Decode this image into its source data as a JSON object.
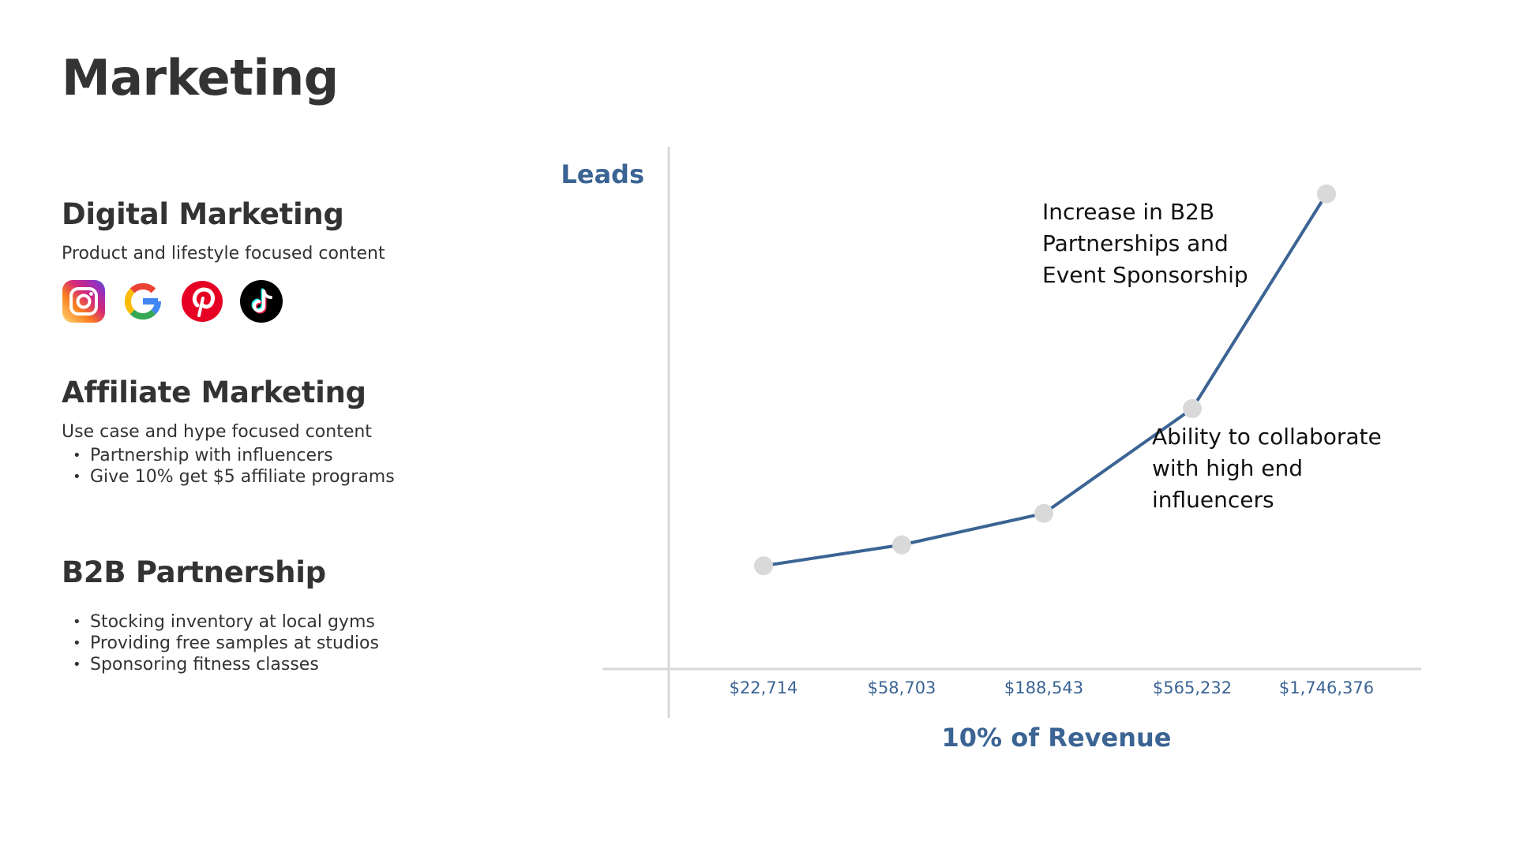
{
  "title": "Marketing",
  "sections": {
    "digital": {
      "heading": "Digital Marketing",
      "description": "Product and lifestyle focused content",
      "icons": [
        "instagram-icon",
        "google-icon",
        "pinterest-icon",
        "tiktok-icon"
      ]
    },
    "affiliate": {
      "heading": "Affiliate Marketing",
      "description": "Use case and hype focused content",
      "bullets": [
        "Partnership with influencers",
        "Give 10% get $5 affiliate programs"
      ]
    },
    "b2b": {
      "heading": "B2B Partnership",
      "bullets": [
        "Stocking inventory at local gyms",
        "Providing free samples at studios",
        "Sponsoring fitness classes"
      ]
    }
  },
  "colors": {
    "accent": "#3b6494",
    "line": "#3b6494",
    "marker": "#d9d9d9",
    "axis": "#d9d9d9",
    "text": "#333333"
  },
  "chart_data": {
    "type": "line",
    "categories": [
      "$22,714",
      "$58,703",
      "$188,543",
      "$565,232",
      "$1,746,376"
    ],
    "values": [
      20,
      24,
      30,
      50,
      91
    ],
    "ylim": [
      0,
      100
    ],
    "xlabel": "10% of Revenue",
    "ylabel": "Leads",
    "grid": false,
    "annotations": [
      {
        "lines": [
          "Increase in B2B",
          "Partnerships and",
          "Event Sponsorship"
        ]
      },
      {
        "lines": [
          "Ability to collaborate",
          "with high end",
          "influencers"
        ]
      }
    ]
  }
}
